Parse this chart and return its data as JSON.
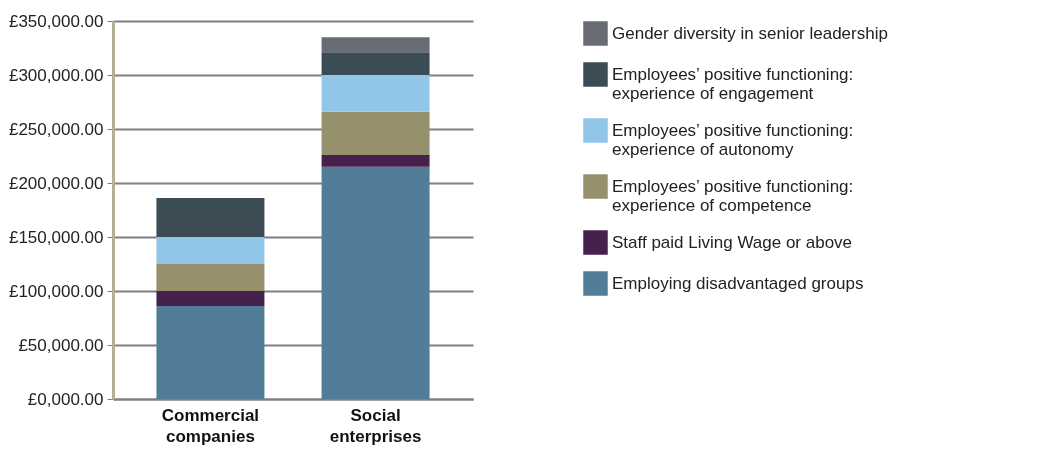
{
  "chart_data": {
    "type": "bar",
    "stacked": true,
    "categories": [
      "Commercial companies",
      "Social enterprises"
    ],
    "series": [
      {
        "name": "Employing disadvantaged groups",
        "color": "#527d99",
        "values": [
          86000,
          215000
        ]
      },
      {
        "name": "Staff paid Living Wage or above",
        "color": "#46214d",
        "values": [
          14000,
          11000
        ]
      },
      {
        "name": "Employees’ positive functioning: experience of competence",
        "color": "#96916c",
        "values": [
          25000,
          40000
        ]
      },
      {
        "name": "Employees’ positive functioning: experience of autonomy",
        "color": "#92c6e8",
        "values": [
          25000,
          34000
        ]
      },
      {
        "name": "Employees’ positive functioning: experience of engagement",
        "color": "#3b4c55",
        "values": [
          36000,
          21000
        ]
      },
      {
        "name": "Gender diversity in senior leadership",
        "color": "#6a6c75",
        "values": [
          0,
          14000
        ]
      }
    ],
    "ylim": [
      0,
      350000
    ],
    "yticks": [
      {
        "value": 0,
        "label": "£0,000.00"
      },
      {
        "value": 50000,
        "label": "£50,000.00"
      },
      {
        "value": 100000,
        "label": "£100,000.00"
      },
      {
        "value": 150000,
        "label": "£150,000.00"
      },
      {
        "value": 200000,
        "label": "£200,000.00"
      },
      {
        "value": 250000,
        "label": "£250,000.00"
      },
      {
        "value": 300000,
        "label": "£300,000.00"
      },
      {
        "value": 350000,
        "label": "£350,000.00"
      }
    ],
    "grid": "y",
    "legend": "right"
  }
}
